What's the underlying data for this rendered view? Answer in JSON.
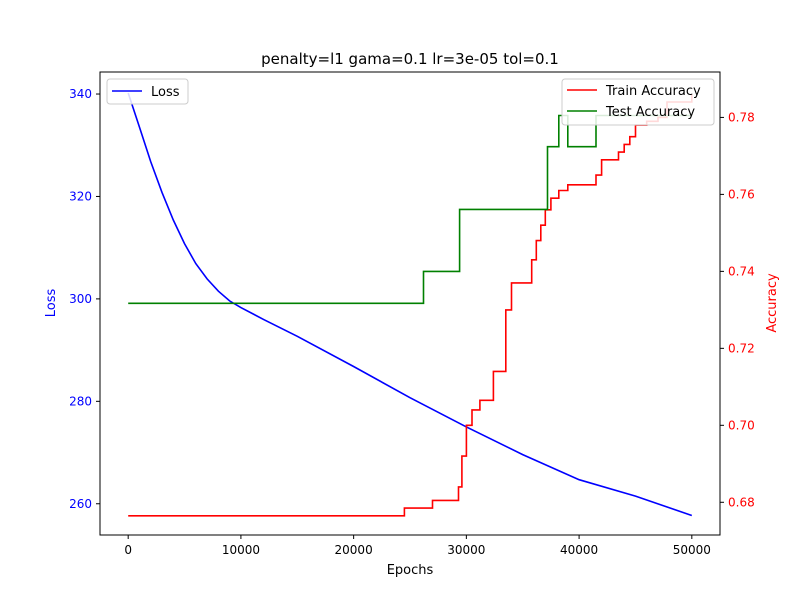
{
  "chart_data": {
    "type": "line",
    "title": "penalty=l1 gama=0.1 lr=3e-05 tol=0.1",
    "xlabel": "Epochs",
    "ylabel_left": "Loss",
    "ylabel_right": "Accuracy",
    "xlim": [
      -2500,
      52500
    ],
    "ylim_left": [
      253.9,
      344.3
    ],
    "ylim_right": [
      0.6715,
      0.7918
    ],
    "x_ticks": [
      0,
      10000,
      20000,
      30000,
      40000,
      50000
    ],
    "y_ticks_left": [
      260,
      280,
      300,
      320,
      340
    ],
    "y_ticks_right": [
      0.68,
      0.7,
      0.72,
      0.74,
      0.76,
      0.78
    ],
    "colors": {
      "loss": "#0000ff",
      "train": "#ff0000",
      "test": "#008000",
      "right_axis": "#ff0000",
      "left_axis": "#0000ff"
    },
    "legend_left": {
      "placement": "upper-left",
      "entries": [
        "Loss"
      ]
    },
    "legend_right": {
      "placement": "upper-right",
      "entries": [
        "Train Accuracy",
        "Test Accuracy"
      ]
    },
    "series": [
      {
        "name": "Loss",
        "axis": "left",
        "x": [
          0,
          1000,
          2000,
          3000,
          4000,
          5000,
          6000,
          7000,
          8000,
          9000,
          10000,
          12000,
          15000,
          20000,
          25000,
          30000,
          35000,
          40000,
          45000,
          50000
        ],
        "values": [
          340.2,
          333.5,
          326.8,
          320.8,
          315.4,
          310.8,
          306.9,
          303.9,
          301.5,
          299.6,
          298.3,
          296.0,
          292.7,
          286.8,
          280.7,
          275.0,
          269.6,
          264.7,
          261.5,
          257.7
        ]
      },
      {
        "name": "Train Accuracy",
        "axis": "right",
        "step": true,
        "x": [
          0,
          24500,
          27000,
          29300,
          29600,
          30000,
          30500,
          31200,
          32400,
          33500,
          34000,
          35800,
          36200,
          36600,
          37000,
          37500,
          38200,
          39000,
          41500,
          42000,
          43500,
          44000,
          44500,
          45000,
          46000,
          47000,
          47800,
          50000
        ],
        "values": [
          0.6765,
          0.6785,
          0.6805,
          0.684,
          0.692,
          0.7,
          0.704,
          0.7065,
          0.714,
          0.73,
          0.737,
          0.743,
          0.748,
          0.752,
          0.756,
          0.759,
          0.761,
          0.7625,
          0.765,
          0.769,
          0.771,
          0.773,
          0.775,
          0.778,
          0.779,
          0.78,
          0.784,
          0.786
        ]
      },
      {
        "name": "Test Accuracy",
        "axis": "right",
        "step": true,
        "x": [
          0,
          26200,
          29400,
          37200,
          38200,
          39000,
          41500,
          45000,
          50000
        ],
        "values": [
          0.7317,
          0.74,
          0.7561,
          0.7724,
          0.7805,
          0.7724,
          0.7805,
          0.7805,
          0.7805
        ]
      }
    ]
  }
}
